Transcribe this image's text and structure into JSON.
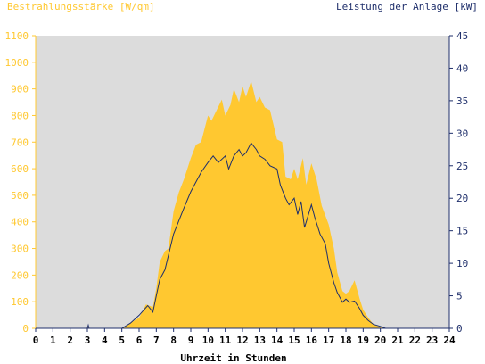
{
  "chart_data": {
    "type": "area",
    "title_left": "Bestrahlungsstärke [W/qm]",
    "title_right": "Leistung der Anlage [kW]",
    "xlabel": "Uhrzeit in Stunden",
    "x_ticks": [
      "0",
      "1",
      "2",
      "3",
      "4",
      "5",
      "6",
      "7",
      "8",
      "9",
      "10",
      "11",
      "12",
      "13",
      "14",
      "15",
      "16",
      "17",
      "18",
      "19",
      "20",
      "21",
      "22",
      "23",
      "24"
    ],
    "y_left_ticks": [
      "0",
      "100",
      "200",
      "300",
      "400",
      "500",
      "600",
      "700",
      "800",
      "900",
      "1000",
      "1100"
    ],
    "y_right_ticks": [
      "0",
      "5",
      "10",
      "15",
      "20",
      "25",
      "30",
      "35",
      "40",
      "45"
    ],
    "xlim": [
      0,
      24
    ],
    "ylim_left": [
      0,
      1100
    ],
    "ylim_right": [
      0,
      45
    ],
    "grid": false,
    "colors": {
      "plot_background": "#dcdcdc",
      "irradiance_fill": "#ffc830",
      "power_line": "#1f2f6b",
      "left_axis_text": "#ffc830",
      "right_axis_text": "#1f2f6b"
    },
    "series": [
      {
        "axis": "left",
        "style": "area",
        "x": [
          0,
          3,
          3.05,
          3.1,
          5,
          5.5,
          6,
          6.4,
          6.8,
          7,
          7.2,
          7.5,
          7.7,
          8,
          8.3,
          8.6,
          9,
          9.3,
          9.6,
          10,
          10.2,
          10.5,
          10.8,
          11,
          11.3,
          11.5,
          11.8,
          12,
          12.2,
          12.5,
          12.8,
          13,
          13.3,
          13.6,
          14,
          14.3,
          14.5,
          14.8,
          15,
          15.2,
          15.5,
          15.7,
          16,
          16.3,
          16.6,
          17,
          17.3,
          17.5,
          17.8,
          18,
          18.2,
          18.5,
          18.8,
          19,
          19.3,
          19.6,
          20,
          20.3,
          24
        ],
        "y": [
          0,
          0,
          10,
          0,
          0,
          20,
          40,
          90,
          80,
          150,
          250,
          290,
          300,
          440,
          510,
          560,
          640,
          690,
          700,
          800,
          780,
          820,
          860,
          800,
          840,
          900,
          850,
          910,
          870,
          930,
          850,
          870,
          830,
          820,
          710,
          700,
          570,
          560,
          600,
          560,
          640,
          540,
          620,
          560,
          460,
          390,
          300,
          210,
          140,
          130,
          140,
          180,
          110,
          70,
          40,
          15,
          5,
          0,
          0
        ]
      },
      {
        "axis": "right",
        "style": "line",
        "x": [
          0,
          3,
          3.05,
          3.1,
          5,
          5.5,
          6,
          6.5,
          6.8,
          7,
          7.2,
          7.5,
          8,
          8.3,
          8.6,
          9,
          9.3,
          9.6,
          10,
          10.3,
          10.6,
          11,
          11.2,
          11.5,
          11.8,
          12,
          12.2,
          12.5,
          12.8,
          13,
          13.3,
          13.6,
          14,
          14.2,
          14.5,
          14.7,
          15,
          15.2,
          15.4,
          15.6,
          16,
          16.2,
          16.5,
          16.8,
          17,
          17.3,
          17.5,
          17.8,
          18,
          18.2,
          18.5,
          18.8,
          19,
          19.3,
          19.6,
          20,
          20.3,
          24
        ],
        "y": [
          0,
          0,
          0.5,
          0,
          0,
          0.8,
          2,
          3.5,
          2.5,
          5,
          7.5,
          9,
          14.5,
          16.5,
          18.5,
          21,
          22.5,
          24,
          25.5,
          26.5,
          25.5,
          26.5,
          24.5,
          26.5,
          27.5,
          26.5,
          27,
          28.5,
          27.5,
          26.5,
          26,
          25,
          24.5,
          22,
          20,
          19,
          20,
          17.5,
          19.5,
          15.5,
          19,
          17,
          14.5,
          13,
          10,
          7,
          5.5,
          4,
          4.5,
          4,
          4.2,
          3,
          2,
          1.2,
          0.6,
          0.3,
          0,
          0
        ]
      }
    ]
  }
}
